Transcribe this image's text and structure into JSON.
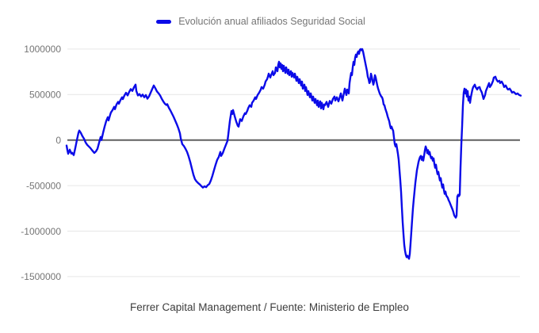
{
  "legend": {
    "label": "Evolución anual afiliados Seguridad Social"
  },
  "caption": "Ferrer Capital Management / Fuente: Ministerio de Empleo",
  "colors": {
    "line": "#0b0be8",
    "grid": "#e6e6e6",
    "zero_axis": "#555555",
    "tick_label": "#757575",
    "legend_text": "#757575",
    "caption_text": "#3d3d3d",
    "background": "#ffffff"
  },
  "chart_data": {
    "type": "line",
    "title": "",
    "series": [
      {
        "name": "Evolución anual afiliados Seguridad Social"
      }
    ],
    "legend_position": "top-center",
    "grid": "horizontal-only",
    "x_axis": {
      "labels_visible": false
    },
    "ylim": [
      -1500000,
      1000000
    ],
    "yticks": [
      {
        "value": 1000000,
        "label": "1000000"
      },
      {
        "value": 500000,
        "label": "500000"
      },
      {
        "value": 0,
        "label": "0"
      },
      {
        "value": -500000,
        "label": "-500000"
      },
      {
        "value": -1000000,
        "label": "-1000000"
      },
      {
        "value": -1500000,
        "label": "-1500000"
      }
    ],
    "points": [
      [
        84,
        -60000
      ],
      [
        85,
        -110000
      ],
      [
        86,
        -150000
      ],
      [
        88,
        -105000
      ],
      [
        90,
        -148000
      ],
      [
        91,
        -139000
      ],
      [
        93,
        -165000
      ],
      [
        95,
        -87000
      ],
      [
        97,
        0
      ],
      [
        99,
        80000
      ],
      [
        100,
        105000
      ],
      [
        102,
        78000
      ],
      [
        104,
        43000
      ],
      [
        106,
        15000
      ],
      [
        108,
        -26000
      ],
      [
        110,
        -52000
      ],
      [
        112,
        -70000
      ],
      [
        114,
        -87000
      ],
      [
        116,
        -110000
      ],
      [
        119,
        -140000
      ],
      [
        121,
        -125000
      ],
      [
        123,
        -95000
      ],
      [
        125,
        -30000
      ],
      [
        127,
        35000
      ],
      [
        128,
        0
      ],
      [
        130,
        78000
      ],
      [
        132,
        148000
      ],
      [
        134,
        209000
      ],
      [
        136,
        252000
      ],
      [
        137,
        217000
      ],
      [
        139,
        278000
      ],
      [
        140,
        304000
      ],
      [
        142,
        330000
      ],
      [
        144,
        365000
      ],
      [
        145,
        340000
      ],
      [
        147,
        391000
      ],
      [
        149,
        420000
      ],
      [
        150,
        400000
      ],
      [
        152,
        440000
      ],
      [
        154,
        470000
      ],
      [
        155,
        450000
      ],
      [
        157,
        490000
      ],
      [
        159,
        520000
      ],
      [
        161,
        490000
      ],
      [
        163,
        530000
      ],
      [
        165,
        560000
      ],
      [
        167,
        540000
      ],
      [
        169,
        580000
      ],
      [
        171,
        610000
      ],
      [
        172,
        540000
      ],
      [
        174,
        490000
      ],
      [
        176,
        505000
      ],
      [
        178,
        480000
      ],
      [
        180,
        500000
      ],
      [
        182,
        470000
      ],
      [
        184,
        495000
      ],
      [
        186,
        455000
      ],
      [
        188,
        480000
      ],
      [
        190,
        520000
      ],
      [
        192,
        560000
      ],
      [
        194,
        600000
      ],
      [
        196,
        570000
      ],
      [
        198,
        535000
      ],
      [
        200,
        515000
      ],
      [
        202,
        490000
      ],
      [
        204,
        455000
      ],
      [
        206,
        425000
      ],
      [
        208,
        400000
      ],
      [
        210,
        385000
      ],
      [
        211,
        395000
      ],
      [
        213,
        355000
      ],
      [
        215,
        325000
      ],
      [
        217,
        290000
      ],
      [
        219,
        255000
      ],
      [
        221,
        215000
      ],
      [
        223,
        175000
      ],
      [
        225,
        130000
      ],
      [
        227,
        75000
      ],
      [
        228,
        20000
      ],
      [
        230,
        -45000
      ],
      [
        232,
        -65000
      ],
      [
        234,
        -95000
      ],
      [
        236,
        -130000
      ],
      [
        238,
        -180000
      ],
      [
        240,
        -240000
      ],
      [
        242,
        -310000
      ],
      [
        244,
        -380000
      ],
      [
        246,
        -430000
      ],
      [
        248,
        -455000
      ],
      [
        250,
        -472000
      ],
      [
        252,
        -487000
      ],
      [
        254,
        -505000
      ],
      [
        256,
        -522000
      ],
      [
        258,
        -508000
      ],
      [
        260,
        -517000
      ],
      [
        262,
        -496000
      ],
      [
        264,
        -483000
      ],
      [
        266,
        -443000
      ],
      [
        268,
        -391000
      ],
      [
        270,
        -330000
      ],
      [
        272,
        -270000
      ],
      [
        274,
        -217000
      ],
      [
        276,
        -185000
      ],
      [
        278,
        -130000
      ],
      [
        279,
        -174000
      ],
      [
        281,
        -144000
      ],
      [
        283,
        -96000
      ],
      [
        285,
        -52000
      ],
      [
        287,
        -9000
      ],
      [
        288,
        60000
      ],
      [
        290,
        210000
      ],
      [
        292,
        320000
      ],
      [
        293,
        287000
      ],
      [
        294,
        330000
      ],
      [
        296,
        265000
      ],
      [
        298,
        205000
      ],
      [
        300,
        157000
      ],
      [
        301,
        148000
      ],
      [
        303,
        230000
      ],
      [
        305,
        210000
      ],
      [
        307,
        260000
      ],
      [
        309,
        295000
      ],
      [
        310,
        287000
      ],
      [
        312,
        322000
      ],
      [
        313,
        348000
      ],
      [
        315,
        383000
      ],
      [
        317,
        365000
      ],
      [
        318,
        409000
      ],
      [
        320,
        435000
      ],
      [
        322,
        470000
      ],
      [
        323,
        452000
      ],
      [
        325,
        496000
      ],
      [
        327,
        522000
      ],
      [
        329,
        556000
      ],
      [
        330,
        583000
      ],
      [
        332,
        565000
      ],
      [
        334,
        609000
      ],
      [
        335,
        643000
      ],
      [
        337,
        670000
      ],
      [
        338,
        696000
      ],
      [
        339,
        730000
      ],
      [
        341,
        687000
      ],
      [
        342,
        713000
      ],
      [
        344,
        757000
      ],
      [
        345,
        713000
      ],
      [
        347,
        739000
      ],
      [
        348,
        800000
      ],
      [
        350,
        757000
      ],
      [
        351,
        826000
      ],
      [
        352,
        861000
      ],
      [
        353,
        800000
      ],
      [
        354,
        843000
      ],
      [
        355,
        783000
      ],
      [
        356,
        826000
      ],
      [
        357,
        757000
      ],
      [
        358,
        817000
      ],
      [
        360,
        739000
      ],
      [
        361,
        800000
      ],
      [
        363,
        730000
      ],
      [
        364,
        774000
      ],
      [
        365,
        713000
      ],
      [
        367,
        757000
      ],
      [
        368,
        696000
      ],
      [
        369,
        739000
      ],
      [
        371,
        687000
      ],
      [
        372,
        730000
      ],
      [
        374,
        652000
      ],
      [
        375,
        696000
      ],
      [
        377,
        626000
      ],
      [
        378,
        670000
      ],
      [
        380,
        600000
      ],
      [
        381,
        643000
      ],
      [
        382,
        565000
      ],
      [
        384,
        609000
      ],
      [
        385,
        539000
      ],
      [
        386,
        583000
      ],
      [
        388,
        496000
      ],
      [
        389,
        539000
      ],
      [
        391,
        470000
      ],
      [
        392,
        513000
      ],
      [
        394,
        435000
      ],
      [
        395,
        478000
      ],
      [
        397,
        409000
      ],
      [
        398,
        452000
      ],
      [
        400,
        383000
      ],
      [
        401,
        435000
      ],
      [
        402,
        365000
      ],
      [
        404,
        426000
      ],
      [
        405,
        348000
      ],
      [
        406,
        409000
      ],
      [
        408,
        339000
      ],
      [
        409,
        391000
      ],
      [
        410,
        383000
      ],
      [
        412,
        420000
      ],
      [
        414,
        365000
      ],
      [
        416,
        430000
      ],
      [
        418,
        400000
      ],
      [
        420,
        452000
      ],
      [
        422,
        478000
      ],
      [
        423,
        435000
      ],
      [
        425,
        470000
      ],
      [
        427,
        426000
      ],
      [
        428,
        452000
      ],
      [
        430,
        513000
      ],
      [
        432,
        435000
      ],
      [
        433,
        478000
      ],
      [
        435,
        565000
      ],
      [
        437,
        496000
      ],
      [
        438,
        556000
      ],
      [
        440,
        513000
      ],
      [
        441,
        626000
      ],
      [
        442,
        687000
      ],
      [
        443,
        739000
      ],
      [
        444,
        713000
      ],
      [
        445,
        800000
      ],
      [
        446,
        861000
      ],
      [
        447,
        826000
      ],
      [
        448,
        904000
      ],
      [
        449,
        939000
      ],
      [
        450,
        913000
      ],
      [
        451,
        957000
      ],
      [
        452,
        974000
      ],
      [
        453,
        948000
      ],
      [
        454,
        991000
      ],
      [
        455,
        1000000
      ],
      [
        456,
        987000
      ],
      [
        457,
        1000000
      ],
      [
        458,
        974000
      ],
      [
        459,
        930000
      ],
      [
        460,
        887000
      ],
      [
        461,
        843000
      ],
      [
        462,
        800000
      ],
      [
        463,
        757000
      ],
      [
        464,
        696000
      ],
      [
        465,
        670000
      ],
      [
        466,
        626000
      ],
      [
        467,
        643000
      ],
      [
        468,
        730000
      ],
      [
        469,
        696000
      ],
      [
        470,
        652000
      ],
      [
        471,
        609000
      ],
      [
        472,
        643000
      ],
      [
        473,
        713000
      ],
      [
        474,
        687000
      ],
      [
        475,
        643000
      ],
      [
        476,
        600000
      ],
      [
        477,
        565000
      ],
      [
        478,
        539000
      ],
      [
        479,
        513000
      ],
      [
        480,
        496000
      ],
      [
        481,
        478000
      ],
      [
        482,
        470000
      ],
      [
        483,
        443000
      ],
      [
        484,
        391000
      ],
      [
        485,
        383000
      ],
      [
        486,
        348000
      ],
      [
        487,
        322000
      ],
      [
        488,
        296000
      ],
      [
        489,
        261000
      ],
      [
        490,
        235000
      ],
      [
        491,
        209000
      ],
      [
        492,
        165000
      ],
      [
        493,
        130000
      ],
      [
        494,
        148000
      ],
      [
        495,
        122000
      ],
      [
        496,
        104000
      ],
      [
        497,
        30000
      ],
      [
        498,
        -43000
      ],
      [
        499,
        -70000
      ],
      [
        500,
        -43000
      ],
      [
        501,
        -96000
      ],
      [
        502,
        -150000
      ],
      [
        503,
        -217000
      ],
      [
        504,
        -330000
      ],
      [
        505,
        -443000
      ],
      [
        506,
        -570000
      ],
      [
        507,
        -740000
      ],
      [
        508,
        -900000
      ],
      [
        509,
        -1030000
      ],
      [
        510,
        -1150000
      ],
      [
        511,
        -1217000
      ],
      [
        512,
        -1261000
      ],
      [
        513,
        -1287000
      ],
      [
        514,
        -1270000
      ],
      [
        515,
        -1287000
      ],
      [
        516,
        -1304000
      ],
      [
        517,
        -1250000
      ],
      [
        518,
        -1130000
      ],
      [
        519,
        -1000000
      ],
      [
        520,
        -870000
      ],
      [
        521,
        -748000
      ],
      [
        522,
        -650000
      ],
      [
        523,
        -560000
      ],
      [
        524,
        -470000
      ],
      [
        525,
        -400000
      ],
      [
        526,
        -330000
      ],
      [
        527,
        -287000
      ],
      [
        528,
        -240000
      ],
      [
        529,
        -209000
      ],
      [
        530,
        -185000
      ],
      [
        531,
        -174000
      ],
      [
        532,
        -217000
      ],
      [
        533,
        -183000
      ],
      [
        534,
        -226000
      ],
      [
        535,
        -174000
      ],
      [
        536,
        -113000
      ],
      [
        537,
        -70000
      ],
      [
        538,
        -96000
      ],
      [
        539,
        -144000
      ],
      [
        540,
        -110000
      ],
      [
        541,
        -157000
      ],
      [
        542,
        -130000
      ],
      [
        543,
        -174000
      ],
      [
        544,
        -200000
      ],
      [
        545,
        -185000
      ],
      [
        546,
        -226000
      ],
      [
        547,
        -200000
      ],
      [
        548,
        -261000
      ],
      [
        549,
        -304000
      ],
      [
        550,
        -270000
      ],
      [
        551,
        -330000
      ],
      [
        552,
        -374000
      ],
      [
        553,
        -348000
      ],
      [
        554,
        -400000
      ],
      [
        555,
        -443000
      ],
      [
        556,
        -417000
      ],
      [
        557,
        -478000
      ],
      [
        558,
        -522000
      ],
      [
        559,
        -487000
      ],
      [
        560,
        -548000
      ],
      [
        561,
        -591000
      ],
      [
        562,
        -565000
      ],
      [
        563,
        -609000
      ],
      [
        565,
        -635000
      ],
      [
        566,
        -661000
      ],
      [
        567,
        -678000
      ],
      [
        568,
        -700000
      ],
      [
        569,
        -722000
      ],
      [
        570,
        -743000
      ],
      [
        571,
        -765000
      ],
      [
        572,
        -791000
      ],
      [
        573,
        -826000
      ],
      [
        574,
        -840000
      ],
      [
        575,
        -852000
      ],
      [
        576,
        -830000
      ],
      [
        577,
        -620000
      ],
      [
        578,
        -600000
      ],
      [
        579,
        -617000
      ],
      [
        580,
        -600000
      ],
      [
        581,
        -300000
      ],
      [
        582,
        -50000
      ],
      [
        583,
        150000
      ],
      [
        584,
        380000
      ],
      [
        585,
        520000
      ],
      [
        586,
        565000
      ],
      [
        587,
        513000
      ],
      [
        588,
        556000
      ],
      [
        589,
        478000
      ],
      [
        590,
        539000
      ],
      [
        591,
        435000
      ],
      [
        592,
        478000
      ],
      [
        593,
        409000
      ],
      [
        594,
        470000
      ],
      [
        595,
        513000
      ],
      [
        596,
        556000
      ],
      [
        597,
        583000
      ],
      [
        599,
        609000
      ],
      [
        600,
        583000
      ],
      [
        602,
        556000
      ],
      [
        603,
        575000
      ],
      [
        605,
        583000
      ],
      [
        606,
        556000
      ],
      [
        607,
        539000
      ],
      [
        608,
        520000
      ],
      [
        610,
        452000
      ],
      [
        612,
        496000
      ],
      [
        613,
        539000
      ],
      [
        615,
        583000
      ],
      [
        617,
        626000
      ],
      [
        618,
        583000
      ],
      [
        620,
        609000
      ],
      [
        622,
        652000
      ],
      [
        623,
        687000
      ],
      [
        625,
        696000
      ],
      [
        626,
        670000
      ],
      [
        628,
        643000
      ],
      [
        630,
        652000
      ],
      [
        631,
        626000
      ],
      [
        633,
        643000
      ],
      [
        635,
        609000
      ],
      [
        636,
        583000
      ],
      [
        638,
        600000
      ],
      [
        640,
        565000
      ],
      [
        641,
        556000
      ],
      [
        643,
        565000
      ],
      [
        645,
        539000
      ],
      [
        646,
        522000
      ],
      [
        648,
        530000
      ],
      [
        650,
        513000
      ],
      [
        651,
        504000
      ],
      [
        653,
        513000
      ],
      [
        655,
        496000
      ],
      [
        657,
        489000
      ]
    ]
  }
}
